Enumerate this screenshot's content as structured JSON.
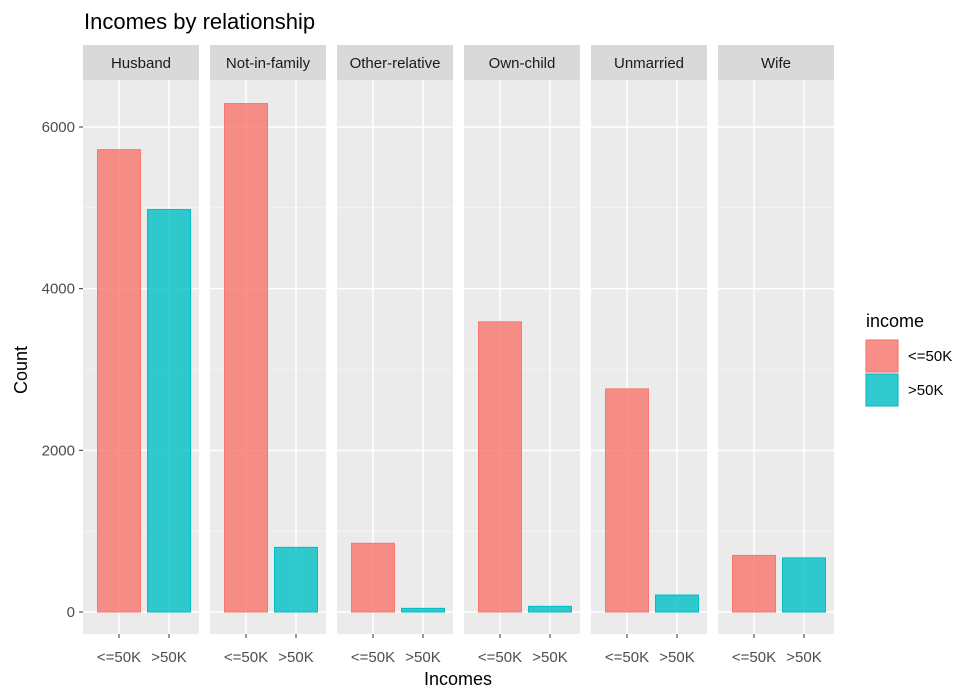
{
  "chart_data": {
    "type": "bar",
    "title": "Incomes by relationship",
    "xlabel": "Incomes",
    "ylabel": "Count",
    "ylim": [
      0,
      6600
    ],
    "yticks": [
      0,
      2000,
      4000,
      6000
    ],
    "grid": true,
    "legend_position": "right",
    "legend": {
      "title": "income",
      "entries": [
        {
          "label": "<=50K",
          "color": "#F8766D"
        },
        {
          "label": ">50K",
          "color": "#00BFC4"
        }
      ]
    },
    "categories": [
      "<=50K",
      ">50K"
    ],
    "facets": [
      {
        "name": "Husband",
        "values": [
          5720,
          4980
        ]
      },
      {
        "name": "Not-in-family",
        "values": [
          6290,
          800
        ]
      },
      {
        "name": "Other-relative",
        "values": [
          850,
          45
        ]
      },
      {
        "name": "Own-child",
        "values": [
          3590,
          70
        ]
      },
      {
        "name": "Unmarried",
        "values": [
          2760,
          210
        ]
      },
      {
        "name": "Wife",
        "values": [
          700,
          670
        ]
      }
    ]
  }
}
